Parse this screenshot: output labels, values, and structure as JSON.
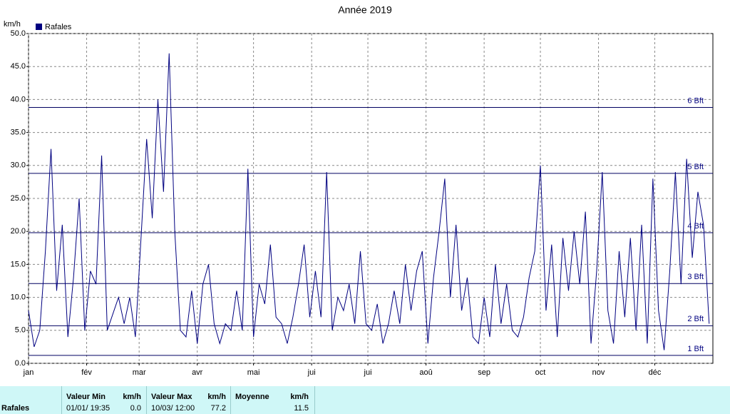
{
  "chart_data": {
    "type": "line",
    "title": "Année 2019",
    "y_label": "km/h",
    "x": [
      1,
      4,
      7,
      10,
      13,
      16,
      19,
      22,
      25,
      28,
      31,
      34,
      37,
      40,
      43,
      46,
      49,
      52,
      55,
      58,
      61,
      64,
      67,
      70,
      73,
      76,
      79,
      82,
      85,
      88,
      91,
      94,
      97,
      100,
      103,
      106,
      109,
      112,
      115,
      118,
      121,
      124,
      127,
      130,
      133,
      136,
      139,
      142,
      145,
      148,
      151,
      154,
      157,
      160,
      163,
      166,
      169,
      172,
      175,
      178,
      181,
      184,
      187,
      190,
      193,
      196,
      199,
      202,
      205,
      208,
      211,
      214,
      217,
      220,
      223,
      226,
      229,
      232,
      235,
      238,
      241,
      244,
      247,
      250,
      253,
      256,
      259,
      262,
      265,
      268,
      271,
      274,
      277,
      280,
      283,
      286,
      289,
      292,
      295,
      298,
      301,
      304,
      307,
      310,
      313,
      316,
      319,
      322,
      325,
      328,
      331,
      334,
      337,
      340,
      343,
      346,
      349,
      352,
      355,
      358,
      361,
      364
    ],
    "series": [
      {
        "name": "Rafales",
        "color": "#000080",
        "values": [
          8,
          2.5,
          5,
          17,
          32.5,
          11,
          21,
          4,
          13,
          25,
          5,
          14,
          12,
          31.5,
          5,
          7.5,
          10,
          6,
          10,
          4,
          19,
          34,
          22,
          40,
          26,
          47,
          20,
          5,
          4,
          11,
          3,
          12,
          15,
          6,
          3,
          6,
          5,
          11,
          5,
          29.5,
          4,
          12,
          9,
          18,
          7,
          6,
          3,
          7,
          12,
          18,
          7,
          14,
          7,
          29,
          5,
          10,
          8,
          12,
          6,
          17,
          6,
          5,
          9,
          3,
          6,
          11,
          6,
          15,
          8,
          14,
          17,
          3,
          13,
          20,
          28,
          10,
          21,
          8,
          13,
          4,
          3,
          10,
          4,
          15,
          6,
          12,
          5,
          4,
          7,
          13,
          17,
          30,
          8,
          18,
          4,
          19,
          11,
          20,
          12,
          23,
          3,
          14,
          29,
          8,
          3,
          17,
          7,
          19,
          5,
          21,
          3,
          28,
          8,
          2,
          14,
          29,
          12,
          31,
          16,
          26,
          21,
          6
        ]
      }
    ],
    "xlim": [
      1,
      366
    ],
    "xticks": [
      {
        "value": 1,
        "label": "jan"
      },
      {
        "value": 32,
        "label": "fév"
      },
      {
        "value": 60,
        "label": "mar"
      },
      {
        "value": 91,
        "label": "avr"
      },
      {
        "value": 121,
        "label": "mai"
      },
      {
        "value": 152,
        "label": "jui"
      },
      {
        "value": 182,
        "label": "jui"
      },
      {
        "value": 213,
        "label": "aoû"
      },
      {
        "value": 244,
        "label": "sep"
      },
      {
        "value": 274,
        "label": "oct"
      },
      {
        "value": 305,
        "label": "nov"
      },
      {
        "value": 335,
        "label": "déc"
      }
    ],
    "ylim": [
      0,
      50
    ],
    "yticks": [
      {
        "value": 0,
        "label": "0.0"
      },
      {
        "value": 5,
        "label": "5.0"
      },
      {
        "value": 10,
        "label": "10.0"
      },
      {
        "value": 15,
        "label": "15.0"
      },
      {
        "value": 20,
        "label": "20.0"
      },
      {
        "value": 25,
        "label": "25.0"
      },
      {
        "value": 30,
        "label": "30.0"
      },
      {
        "value": 35,
        "label": "35.0"
      },
      {
        "value": 40,
        "label": "40.0"
      },
      {
        "value": 45,
        "label": "45.0"
      },
      {
        "value": 50,
        "label": "50.0"
      }
    ],
    "grid": true,
    "reference_lines": [
      {
        "value": 1.2,
        "label": "1 Bft"
      },
      {
        "value": 5.7,
        "label": "2 Bft"
      },
      {
        "value": 12.1,
        "label": "3 Bft"
      },
      {
        "value": 19.8,
        "label": "4 Bft"
      },
      {
        "value": 28.8,
        "label": "5 Bft"
      },
      {
        "value": 38.8,
        "label": "6 Bft"
      }
    ]
  },
  "table": {
    "row_label": "Rafales",
    "columns": [
      {
        "header": "Valeur Min",
        "unit": "km/h",
        "date": "01/01/ 19:35",
        "value": "0.0"
      },
      {
        "header": "Valeur Max",
        "unit": "km/h",
        "date": "10/03/ 12:00",
        "value": "77.2"
      },
      {
        "header": "Moyenne",
        "unit": "km/h",
        "value": "11.5"
      }
    ]
  }
}
